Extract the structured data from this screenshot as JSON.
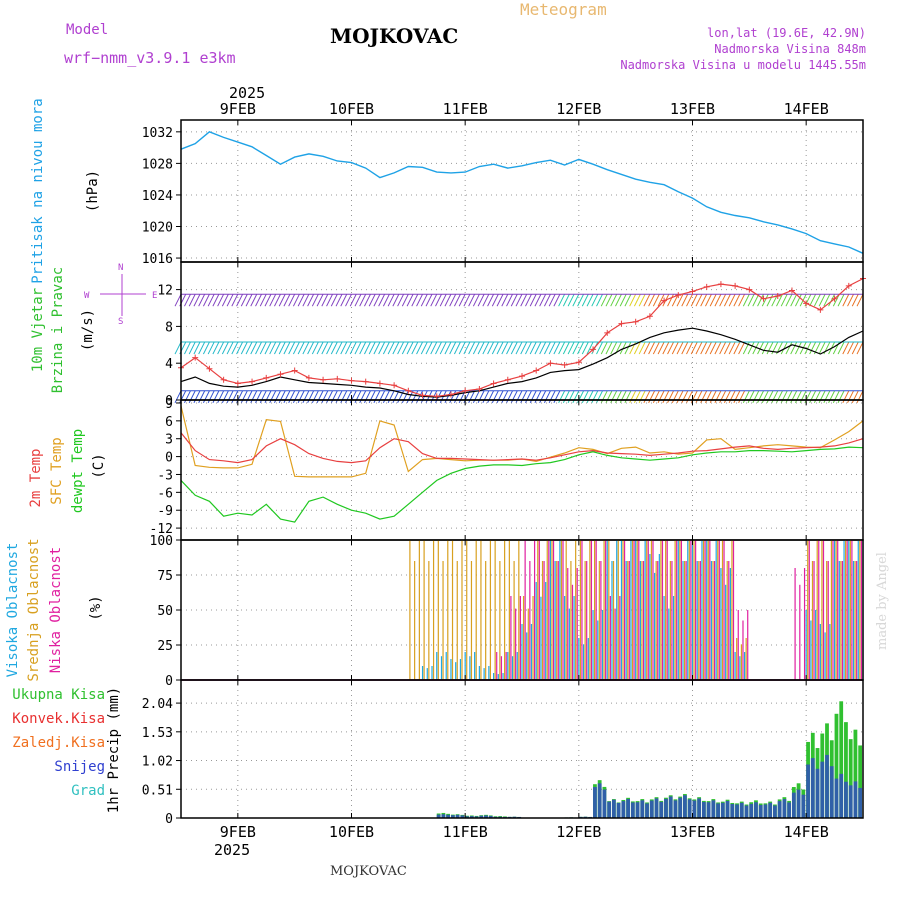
{
  "header": {
    "model_label": "Model",
    "model_name": "wrf−nmm_v3.9.1  e3km",
    "station": "MOJKOVAC",
    "product": "Meteogram",
    "lonlat": "lon,lat (19.6E, 42.9N)",
    "altitude": "Nadmorska Visina 848m",
    "model_altitude": "Nadmorska Visina u modelu 1445.55m",
    "year": "2025",
    "footer_station": "MOJKOVAC",
    "credit": "made by Angel"
  },
  "colors": {
    "pressure": "#1fa2e6",
    "temp2m": "#e84040",
    "sfctemp": "#e0a020",
    "dewpt": "#20c820",
    "high_cloud": "#20a8e0",
    "mid_cloud": "#d8a020",
    "low_cloud": "#e020a0",
    "total_precip": "#30c030",
    "conv_precip": "#e83030",
    "snow": "#3040d0",
    "frozen": "#f07020",
    "hail": "#30c0c0",
    "violet_text": "#b040d0",
    "orange_text": "#e8b870"
  },
  "compass": {
    "n": "N",
    "e": "E",
    "s": "S",
    "w": "W"
  },
  "chart_data": [
    {
      "type": "line",
      "title": "Pritisak na nivou mora",
      "ylabel": "(hPa)",
      "ylim": [
        1015.5,
        1033.5
      ],
      "yticks": [
        1016,
        1020,
        1024,
        1028,
        1032
      ],
      "x": [
        0,
        3,
        6,
        9,
        12,
        15,
        18,
        21,
        24,
        27,
        30,
        33,
        36,
        39,
        42,
        45,
        48,
        51,
        54,
        57,
        60,
        63,
        66,
        69,
        72,
        75,
        78,
        81,
        84,
        87,
        90,
        93,
        96,
        99,
        102,
        105,
        108,
        111,
        114,
        117,
        120,
        123,
        126,
        129,
        132,
        135,
        138,
        141,
        144
      ],
      "series": [
        {
          "name": "Pritisak na nivou mora",
          "values": [
            1029.8,
            1030.5,
            1032.0,
            1031.3,
            1030.7,
            1030.1,
            1029.0,
            1027.9,
            1028.8,
            1029.2,
            1028.9,
            1028.3,
            1028.1,
            1027.4,
            1026.2,
            1026.8,
            1027.6,
            1027.5,
            1026.9,
            1026.8,
            1026.9,
            1027.6,
            1027.9,
            1027.4,
            1027.7,
            1028.1,
            1028.4,
            1027.8,
            1028.5,
            1027.9,
            1027.2,
            1026.6,
            1026.0,
            1025.6,
            1025.3,
            1024.4,
            1023.6,
            1022.5,
            1021.8,
            1021.4,
            1021.1,
            1020.6,
            1020.2,
            1019.7,
            1019.1,
            1018.2,
            1017.8,
            1017.4,
            1016.6
          ]
        }
      ]
    },
    {
      "type": "line",
      "title": "10m Vjetar",
      "subtitle": "Brzina i Pravac",
      "ylabel": "(m/s)",
      "ylim": [
        0,
        15
      ],
      "yticks": [
        0,
        4,
        8,
        12
      ],
      "x": [
        0,
        3,
        6,
        9,
        12,
        15,
        18,
        21,
        24,
        27,
        30,
        33,
        36,
        39,
        42,
        45,
        48,
        51,
        54,
        57,
        60,
        63,
        66,
        69,
        72,
        75,
        78,
        81,
        84,
        87,
        90,
        93,
        96,
        99,
        102,
        105,
        108,
        111,
        114,
        117,
        120,
        123,
        126,
        129,
        132,
        135,
        138,
        141,
        144
      ],
      "series": [
        {
          "name": "Udari vjetra",
          "values": [
            3.5,
            4.6,
            3.4,
            2.2,
            1.8,
            2.0,
            2.4,
            2.8,
            3.2,
            2.4,
            2.2,
            2.3,
            2.1,
            2.0,
            1.8,
            1.6,
            1.0,
            0.5,
            0.4,
            0.6,
            1.0,
            1.2,
            1.8,
            2.2,
            2.6,
            3.2,
            4.0,
            3.8,
            4.1,
            5.5,
            7.3,
            8.3,
            8.5,
            9.1,
            10.8,
            11.4,
            11.8,
            12.3,
            12.6,
            12.4,
            12.0,
            11.0,
            11.3,
            11.9,
            10.5,
            9.8,
            11.0,
            12.4,
            13.2
          ]
        },
        {
          "name": "Brzina vjetra",
          "values": [
            2.0,
            2.5,
            1.8,
            1.5,
            1.4,
            1.6,
            2.0,
            2.5,
            2.2,
            1.9,
            1.8,
            1.7,
            1.6,
            1.4,
            1.3,
            1.0,
            0.6,
            0.4,
            0.3,
            0.5,
            0.8,
            1.0,
            1.4,
            1.8,
            2.0,
            2.4,
            3.0,
            3.2,
            3.3,
            3.9,
            4.6,
            5.5,
            6.1,
            6.8,
            7.3,
            7.6,
            7.8,
            7.5,
            7.1,
            6.6,
            6.0,
            5.4,
            5.2,
            6.0,
            5.6,
            5.0,
            5.8,
            6.8,
            7.5
          ]
        }
      ]
    },
    {
      "type": "line",
      "title": "2m Temp / SFC Temp / dewpt Temp",
      "ylabel": "(C)",
      "ylim": [
        -14,
        9.5
      ],
      "yticks": [
        -12,
        -9,
        -6,
        -3,
        0,
        3,
        6,
        9
      ],
      "x": [
        0,
        3,
        6,
        9,
        12,
        15,
        18,
        21,
        24,
        27,
        30,
        33,
        36,
        39,
        42,
        45,
        48,
        51,
        54,
        57,
        60,
        63,
        66,
        69,
        72,
        75,
        78,
        81,
        84,
        87,
        90,
        93,
        96,
        99,
        102,
        105,
        108,
        111,
        114,
        117,
        120,
        123,
        126,
        129,
        132,
        135,
        138,
        141,
        144
      ],
      "series": [
        {
          "name": "2m Temp",
          "values": [
            4.0,
            1.0,
            -0.5,
            -0.7,
            -1.0,
            -0.5,
            1.8,
            3.0,
            2.0,
            0.5,
            -0.3,
            -0.8,
            -1.0,
            -0.7,
            1.5,
            3.0,
            2.5,
            0.5,
            -0.3,
            -0.3,
            -0.4,
            -0.5,
            -0.6,
            -0.5,
            -0.4,
            -0.6,
            -0.2,
            0.3,
            0.8,
            1.0,
            0.6,
            0.5,
            0.4,
            0.2,
            0.4,
            0.6,
            0.9,
            1.0,
            1.3,
            1.6,
            1.8,
            1.4,
            1.2,
            1.4,
            1.5,
            1.6,
            1.8,
            2.3,
            3.0
          ]
        },
        {
          "name": "SFC Temp",
          "values": [
            8.5,
            -1.5,
            -1.8,
            -1.9,
            -1.9,
            -1.3,
            6.2,
            5.9,
            -3.3,
            -3.4,
            -3.4,
            -3.4,
            -3.4,
            -2.8,
            6.0,
            5.3,
            -2.5,
            -0.5,
            -0.3,
            -0.5,
            -0.7,
            -0.6,
            -0.6,
            -0.6,
            -0.4,
            -0.8,
            -0.1,
            0.6,
            1.5,
            1.2,
            0.5,
            1.4,
            1.6,
            0.6,
            0.8,
            0.4,
            0.6,
            2.8,
            3.0,
            1.2,
            1.5,
            1.8,
            2.0,
            1.8,
            1.6,
            1.5,
            2.8,
            4.2,
            6.0
          ]
        },
        {
          "name": "dewpt Temp",
          "values": [
            -4.0,
            -6.5,
            -7.5,
            -10.0,
            -9.5,
            -9.8,
            -8.0,
            -10.5,
            -11.0,
            -7.5,
            -6.8,
            -8.0,
            -9.0,
            -9.5,
            -10.5,
            -10.0,
            -8.0,
            -6.0,
            -4.0,
            -2.8,
            -2.0,
            -1.6,
            -1.4,
            -1.4,
            -1.5,
            -1.2,
            -1.0,
            -0.5,
            0.3,
            0.8,
            0.2,
            -0.2,
            -0.4,
            -0.6,
            -0.4,
            -0.2,
            0.3,
            0.6,
            0.8,
            0.8,
            1.0,
            1.0,
            0.9,
            0.8,
            1.0,
            1.2,
            1.3,
            1.6,
            1.5
          ]
        }
      ]
    },
    {
      "type": "bar",
      "title": "Visoka Oblacnost / Srednja Oblacnost / Niska Oblacnost",
      "ylabel": "(%)",
      "ylim": [
        0,
        100
      ],
      "yticks": [
        0,
        25,
        50,
        75,
        100
      ],
      "x": [
        0,
        3,
        6,
        9,
        12,
        15,
        18,
        21,
        24,
        27,
        30,
        33,
        36,
        39,
        42,
        45,
        48,
        51,
        54,
        57,
        60,
        63,
        66,
        69,
        72,
        75,
        78,
        81,
        84,
        87,
        90,
        93,
        96,
        99,
        102,
        105,
        108,
        111,
        114,
        117,
        120,
        123,
        126,
        129,
        132,
        135,
        138,
        141,
        144
      ],
      "series": [
        {
          "name": "Visoka Oblacnost",
          "values": [
            0,
            0,
            0,
            0,
            0,
            0,
            0,
            0,
            0,
            0,
            0,
            0,
            0,
            0,
            0,
            0,
            0,
            10,
            20,
            15,
            20,
            10,
            5,
            20,
            40,
            70,
            100,
            60,
            30,
            50,
            100,
            100,
            100,
            90,
            60,
            100,
            100,
            100,
            80,
            20,
            0,
            0,
            0,
            0,
            50,
            40,
            100,
            100,
            100
          ]
        },
        {
          "name": "Srednja Oblacnost",
          "values": [
            0,
            0,
            0,
            0,
            0,
            0,
            0,
            0,
            0,
            0,
            0,
            0,
            0,
            0,
            0,
            0,
            100,
            100,
            100,
            100,
            100,
            100,
            100,
            100,
            60,
            100,
            100,
            100,
            100,
            100,
            100,
            100,
            100,
            100,
            100,
            100,
            100,
            100,
            100,
            30,
            0,
            0,
            0,
            0,
            100,
            100,
            100,
            100,
            100
          ]
        },
        {
          "name": "Niska Oblacnost",
          "values": [
            0,
            0,
            0,
            0,
            0,
            0,
            0,
            0,
            0,
            0,
            0,
            0,
            0,
            0,
            0,
            0,
            0,
            0,
            0,
            0,
            0,
            0,
            20,
            60,
            100,
            100,
            100,
            80,
            100,
            100,
            60,
            100,
            100,
            100,
            100,
            100,
            100,
            100,
            100,
            50,
            0,
            0,
            0,
            80,
            100,
            100,
            100,
            100,
            100
          ]
        }
      ]
    },
    {
      "type": "bar",
      "title": "Ukupna Kisa / Konvek.Kisa / Zaledj.Kisa / Snijeg / Grad",
      "ylabel": "1hr Precip (mm)",
      "ylim": [
        0,
        2.45
      ],
      "yticks": [
        0,
        0.51,
        1.02,
        1.53,
        2.04
      ],
      "x": [
        0,
        3,
        6,
        9,
        12,
        15,
        18,
        21,
        24,
        27,
        30,
        33,
        36,
        39,
        42,
        45,
        48,
        51,
        54,
        57,
        60,
        63,
        66,
        69,
        72,
        75,
        78,
        81,
        84,
        87,
        90,
        93,
        96,
        99,
        102,
        105,
        108,
        111,
        114,
        117,
        120,
        123,
        126,
        129,
        132,
        135,
        138,
        141,
        144
      ],
      "series": [
        {
          "name": "Ukupna Kisa",
          "values": [
            0,
            0,
            0,
            0,
            0,
            0,
            0,
            0,
            0,
            0,
            0,
            0,
            0,
            0,
            0,
            0,
            0,
            0,
            0.08,
            0.06,
            0.04,
            0.05,
            0.03,
            0.02,
            0,
            0,
            0,
            0.01,
            0.02,
            0.6,
            0.3,
            0.32,
            0.3,
            0.33,
            0.36,
            0.38,
            0.33,
            0.3,
            0.29,
            0.26,
            0.28,
            0.26,
            0.33,
            0.55,
            1.35,
            1.5,
            1.85,
            1.4,
            0.9
          ]
        },
        {
          "name": "Snijeg",
          "values": [
            0,
            0,
            0,
            0,
            0,
            0,
            0,
            0,
            0,
            0,
            0,
            0,
            0,
            0,
            0,
            0,
            0,
            0,
            0.06,
            0.05,
            0.03,
            0.04,
            0.02,
            0.02,
            0,
            0,
            0,
            0.01,
            0.02,
            0.55,
            0.29,
            0.3,
            0.28,
            0.31,
            0.34,
            0.36,
            0.31,
            0.28,
            0.27,
            0.24,
            0.25,
            0.24,
            0.3,
            0.45,
            0.95,
            1.0,
            0.7,
            0.58,
            0.45
          ]
        }
      ]
    }
  ],
  "panel_labels": {
    "p0": [
      "Pritisak na nivou mora"
    ],
    "p1": [
      "10m Vjetar",
      "Brzina i Pravac"
    ],
    "p2": [
      "2m Temp",
      "SFC Temp",
      "dewpt Temp"
    ],
    "p3": [
      "Visoka Oblacnost",
      "Srednja Oblacnost",
      "Niska Oblacnost"
    ],
    "p4": [
      "Ukupna Kisa",
      "Konvek.Kisa",
      "Zaledj.Kisa",
      "Snijeg",
      "Grad"
    ]
  },
  "x_axis": {
    "date_labels": [
      "9FEB",
      "10FEB",
      "11FEB",
      "12FEB",
      "13FEB",
      "14FEB"
    ],
    "date_hours": [
      12,
      36,
      60,
      84,
      108,
      132
    ],
    "range_hours": [
      0,
      144
    ]
  }
}
